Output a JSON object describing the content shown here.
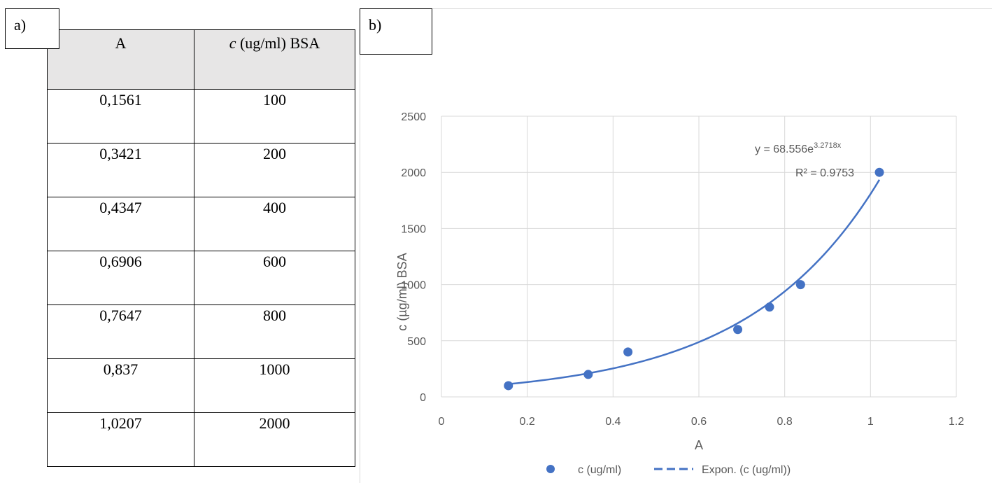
{
  "panel_a": {
    "label": "a)"
  },
  "panel_b": {
    "label": "b)"
  },
  "table": {
    "headers": {
      "a": "A",
      "c_italic": "c",
      "c_rest": " (ug/ml) BSA"
    },
    "rows": [
      {
        "a": "0,1561",
        "c": "100"
      },
      {
        "a": "0,3421",
        "c": "200"
      },
      {
        "a": "0,4347",
        "c": "400"
      },
      {
        "a": "0,6906",
        "c": "600"
      },
      {
        "a": "0,7647",
        "c": "800"
      },
      {
        "a": "0,837",
        "c": "1000"
      },
      {
        "a": "1,0207",
        "c": "2000"
      }
    ]
  },
  "chart_data": {
    "type": "scatter",
    "title": "",
    "xlabel": "A",
    "ylabel": "c (µg/ml) BSA",
    "xlim": [
      0,
      1.2
    ],
    "ylim": [
      0,
      2500
    ],
    "x_ticks": [
      0,
      0.2,
      0.4,
      0.6,
      0.8,
      1,
      1.2
    ],
    "y_ticks": [
      0,
      500,
      1000,
      1500,
      2000,
      2500
    ],
    "grid": true,
    "legend_position": "bottom",
    "series": [
      {
        "name": "c (ug/ml)",
        "x": [
          0.1561,
          0.3421,
          0.4347,
          0.6906,
          0.7647,
          0.837,
          1.0207
        ],
        "y": [
          100,
          200,
          400,
          600,
          800,
          1000,
          2000
        ],
        "color": "#4472c4"
      }
    ],
    "trendline": {
      "name": "Expon. (c (ug/ml))",
      "type": "exponential",
      "a": 68.556,
      "b": 3.2718,
      "x_range": [
        0.1561,
        1.0207
      ],
      "color": "#4472c4",
      "equation_prefix": "y = 68.556e",
      "equation_exponent": "3.2718x",
      "r_squared": "R² = 0.9753"
    },
    "gridline_color": "#d9d9d9",
    "text_color": "#595959"
  }
}
